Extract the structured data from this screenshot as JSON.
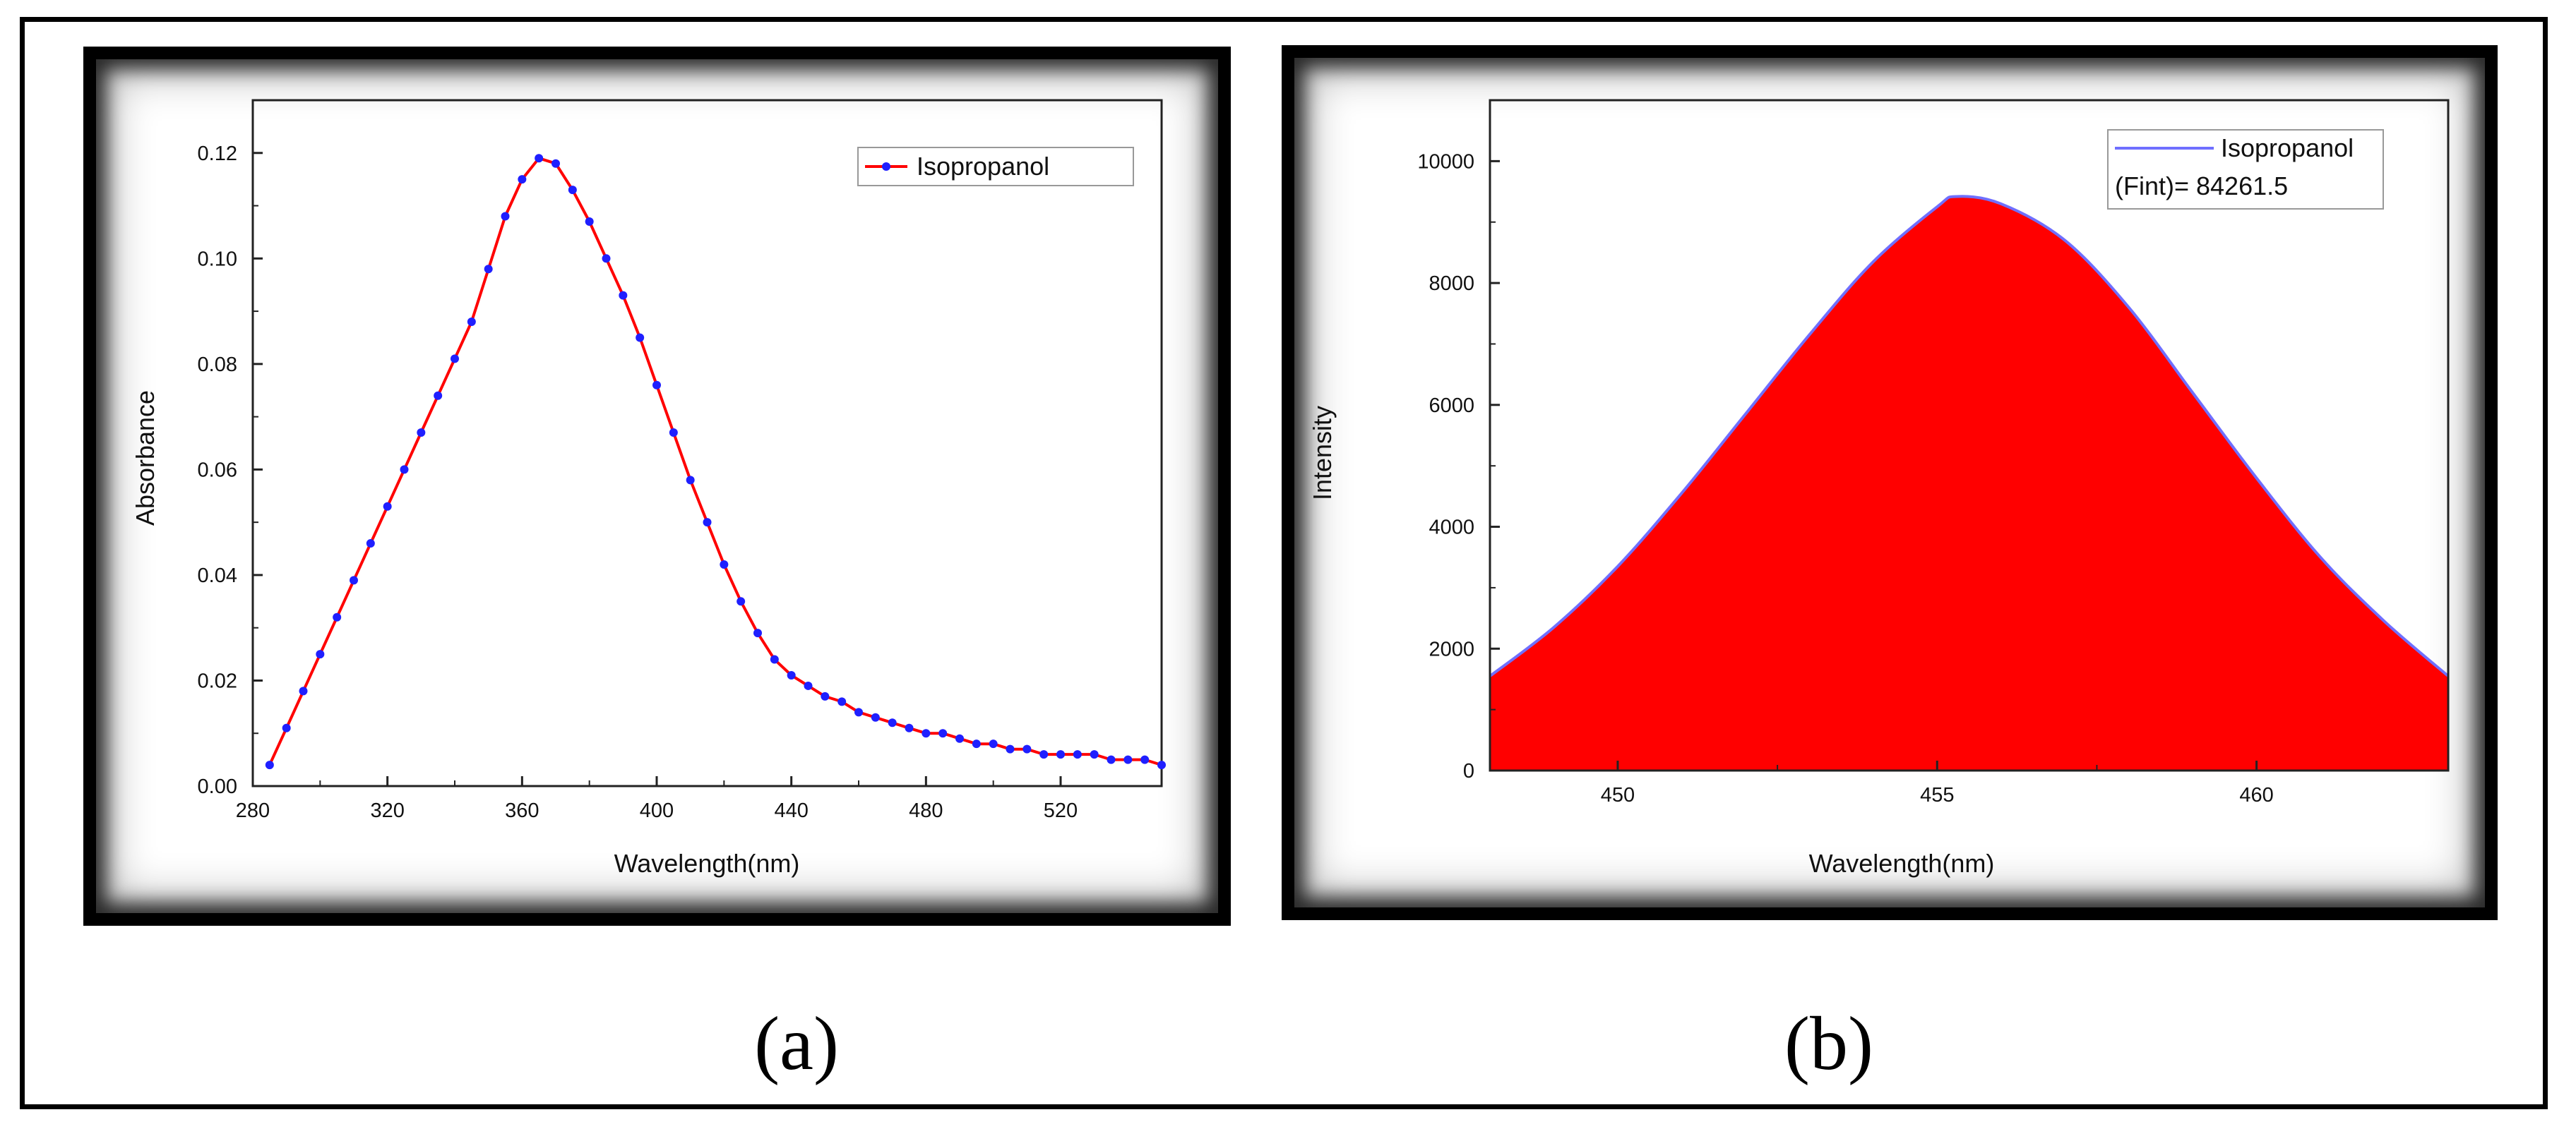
{
  "captions": {
    "a": "(a)",
    "b": "(b)"
  },
  "colors": {
    "line": "#ff0000",
    "marker": "#1f1fff",
    "fill": "#ff0000",
    "outline": "#6f6fff"
  },
  "chart_data": [
    {
      "type": "line",
      "xlabel": "Wavelength(nm)",
      "ylabel": "Absorbance",
      "xlim": [
        280,
        550
      ],
      "ylim": [
        0,
        0.13
      ],
      "xticks": [
        280,
        320,
        360,
        400,
        440,
        480,
        520
      ],
      "yticks": [
        0.0,
        0.02,
        0.04,
        0.06,
        0.08,
        0.1,
        0.12
      ],
      "xtick_labels": [
        "280",
        "320",
        "360",
        "400",
        "440",
        "480",
        "520"
      ],
      "ytick_labels": [
        "0.00",
        "0.02",
        "0.04",
        "0.06",
        "0.08",
        "0.10",
        "0.12"
      ],
      "legend_position": "top-right",
      "series": [
        {
          "name": "Isopropanol",
          "x": [
            285,
            290,
            295,
            300,
            305,
            310,
            315,
            320,
            325,
            330,
            335,
            340,
            345,
            350,
            355,
            360,
            365,
            370,
            375,
            380,
            385,
            390,
            395,
            400,
            405,
            410,
            415,
            420,
            425,
            430,
            435,
            440,
            445,
            450,
            455,
            460,
            465,
            470,
            475,
            480,
            485,
            490,
            495,
            500,
            505,
            510,
            515,
            520,
            525,
            530,
            535,
            540,
            545,
            550
          ],
          "y": [
            0.004,
            0.011,
            0.018,
            0.025,
            0.032,
            0.039,
            0.046,
            0.053,
            0.06,
            0.067,
            0.074,
            0.081,
            0.088,
            0.098,
            0.108,
            0.115,
            0.119,
            0.118,
            0.113,
            0.107,
            0.1,
            0.093,
            0.085,
            0.076,
            0.067,
            0.058,
            0.05,
            0.042,
            0.035,
            0.029,
            0.024,
            0.021,
            0.019,
            0.017,
            0.016,
            0.014,
            0.013,
            0.012,
            0.011,
            0.01,
            0.01,
            0.009,
            0.008,
            0.008,
            0.007,
            0.007,
            0.006,
            0.006,
            0.006,
            0.006,
            0.005,
            0.005,
            0.005,
            0.004
          ]
        }
      ]
    },
    {
      "type": "area",
      "xlabel": "Wavelength(nm)",
      "ylabel": "Intensity",
      "xlim": [
        448,
        463
      ],
      "ylim": [
        0,
        11000
      ],
      "xticks": [
        450,
        455,
        460
      ],
      "yticks": [
        0,
        2000,
        4000,
        6000,
        8000,
        10000
      ],
      "xtick_labels": [
        "450",
        "455",
        "460"
      ],
      "ytick_labels": [
        "0",
        "2000",
        "4000",
        "6000",
        "8000",
        "10000"
      ],
      "legend_position": "top-right",
      "legend_note": "(Fint)= 84261.5",
      "series": [
        {
          "name": "Isopropanol",
          "x": [
            448,
            449,
            450,
            451,
            452,
            453,
            454,
            455,
            455.3,
            456,
            457,
            458,
            459,
            460,
            461,
            462,
            463
          ],
          "y": [
            1550,
            2350,
            3350,
            4550,
            5850,
            7150,
            8350,
            9250,
            9420,
            9300,
            8700,
            7600,
            6200,
            4800,
            3500,
            2450,
            1550
          ]
        }
      ]
    }
  ]
}
